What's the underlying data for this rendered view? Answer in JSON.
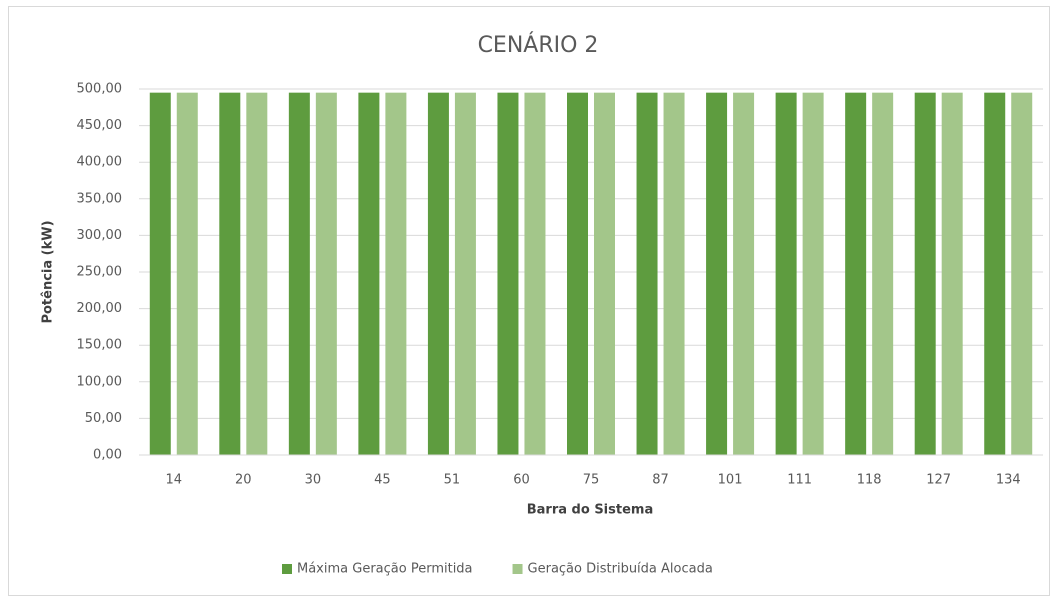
{
  "chart_data": {
    "type": "bar",
    "title": "CENÁRIO 2",
    "x_label": "Barra do Sistema",
    "y_label": "Potência  (kW)",
    "categories": [
      "14",
      "20",
      "30",
      "45",
      "51",
      "60",
      "75",
      "87",
      "101",
      "111",
      "118",
      "127",
      "134"
    ],
    "series": [
      {
        "name": "Máxima Geração Permitida",
        "color": "#5e9c3f",
        "values": [
          495,
          495,
          495,
          495,
          495,
          495,
          495,
          495,
          495,
          495,
          495,
          495,
          495
        ]
      },
      {
        "name": "Geração Distribuída Alocada",
        "color": "#a3c68a",
        "values": [
          495,
          495,
          495,
          495,
          495,
          495,
          495,
          495,
          495,
          495,
          495,
          495,
          495
        ]
      }
    ],
    "ylim": [
      0,
      500
    ],
    "yticks": [
      {
        "value": 0,
        "label": "0,00"
      },
      {
        "value": 50,
        "label": "50,00"
      },
      {
        "value": 100,
        "label": "100,00"
      },
      {
        "value": 150,
        "label": "150,00"
      },
      {
        "value": 200,
        "label": "200,00"
      },
      {
        "value": 250,
        "label": "250,00"
      },
      {
        "value": 300,
        "label": "300,00"
      },
      {
        "value": 350,
        "label": "350,00"
      },
      {
        "value": 400,
        "label": "400,00"
      },
      {
        "value": 450,
        "label": "450,00"
      },
      {
        "value": 500,
        "label": "500,00"
      }
    ],
    "grid": true,
    "legend": "bottom"
  }
}
